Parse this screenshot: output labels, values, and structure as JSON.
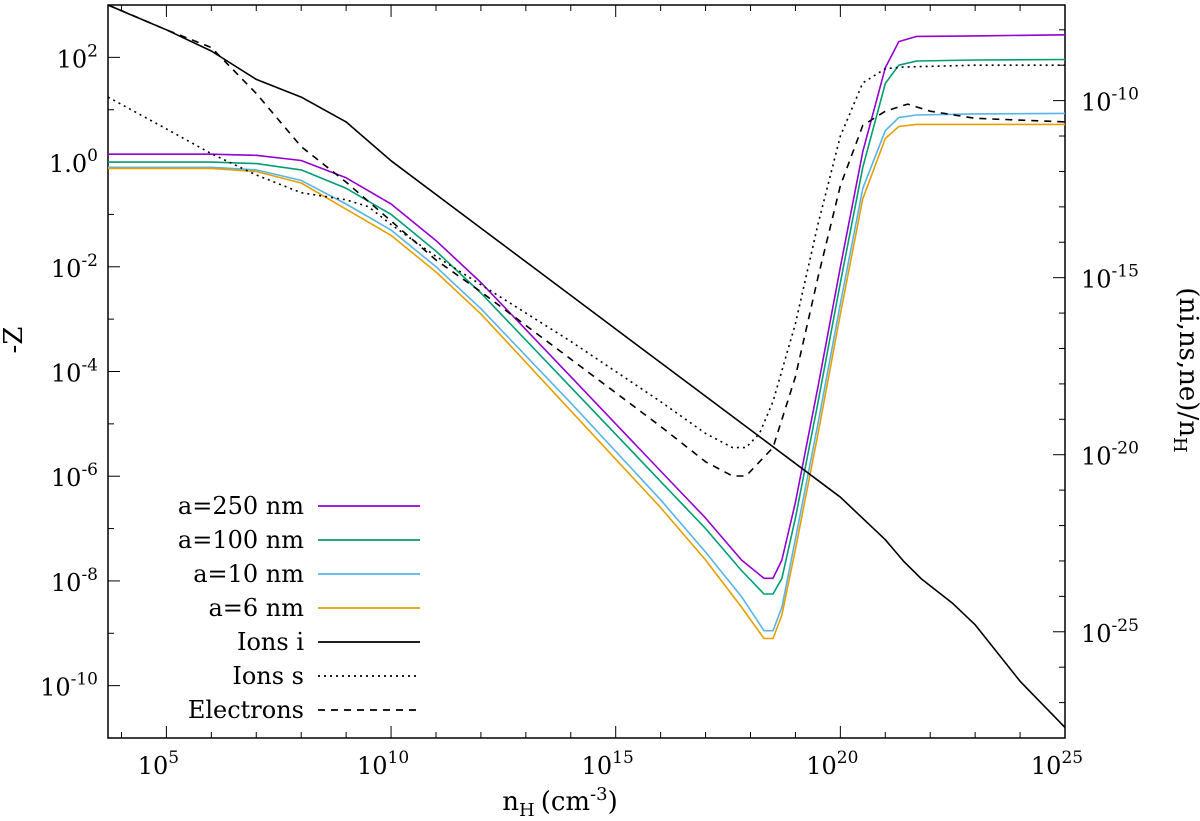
{
  "chart_data": {
    "type": "line",
    "xlabel": "n",
    "xlabel_sub": "H",
    "xlabel_unit": "(cm",
    "xlabel_unit_sup": "-3",
    "xlabel_unit_close": ")",
    "ylabel_left": "-Z",
    "ylabel_right": "(ni,ns,ne)/n",
    "ylabel_right_sub": "H",
    "x_scale": "log",
    "y_left_scale": "log",
    "y_right_scale": "log",
    "xlim_exp": [
      3.7,
      25
    ],
    "ylim_left_exp": [
      -11,
      3
    ],
    "ylim_right_exp": [
      -28,
      -7.3
    ],
    "x_ticks": [
      {
        "base": "10",
        "exp": "5"
      },
      {
        "base": "10",
        "exp": "10"
      },
      {
        "base": "10",
        "exp": "15"
      },
      {
        "base": "10",
        "exp": "20"
      },
      {
        "base": "10",
        "exp": "25"
      }
    ],
    "y_left_ticks": [
      {
        "base": "10",
        "exp": "2"
      },
      {
        "base": "1.0",
        "exp": "0"
      },
      {
        "base": "10",
        "exp": "-2"
      },
      {
        "base": "10",
        "exp": "-4"
      },
      {
        "base": "10",
        "exp": "-6"
      },
      {
        "base": "10",
        "exp": "-8"
      },
      {
        "base": "10",
        "exp": "-10"
      }
    ],
    "y_right_ticks": [
      {
        "base": "10",
        "exp": "-10"
      },
      {
        "base": "10",
        "exp": "-15"
      },
      {
        "base": "10",
        "exp": "-20"
      },
      {
        "base": "10",
        "exp": "-25"
      }
    ],
    "legend_position": "bottom-left",
    "series": [
      {
        "name": "a=250 nm",
        "axis": "left",
        "color": "#9400d3",
        "dash": "solid",
        "points": [
          [
            3.7,
            0.15
          ],
          [
            5,
            0.15
          ],
          [
            6,
            0.15
          ],
          [
            7,
            0.13
          ],
          [
            8,
            0.03
          ],
          [
            9,
            -0.3
          ],
          [
            10,
            -0.8
          ],
          [
            11,
            -1.5
          ],
          [
            12,
            -2.3
          ],
          [
            14,
            -4.1
          ],
          [
            16,
            -5.9
          ],
          [
            17,
            -6.8
          ],
          [
            17.8,
            -7.6
          ],
          [
            18.3,
            -7.95
          ],
          [
            18.5,
            -7.95
          ],
          [
            18.7,
            -7.6
          ],
          [
            19,
            -6.5
          ],
          [
            19.5,
            -4.3
          ],
          [
            20,
            -2
          ],
          [
            20.5,
            0.2
          ],
          [
            21,
            1.8
          ],
          [
            21.3,
            2.3
          ],
          [
            21.7,
            2.4
          ],
          [
            23,
            2.41
          ],
          [
            25,
            2.43
          ]
        ]
      },
      {
        "name": "a=100 nm",
        "axis": "left",
        "color": "#009e73",
        "dash": "solid",
        "points": [
          [
            3.7,
            0.0
          ],
          [
            5,
            0.0
          ],
          [
            6,
            0.0
          ],
          [
            7,
            -0.03
          ],
          [
            8,
            -0.15
          ],
          [
            9,
            -0.5
          ],
          [
            10,
            -1.0
          ],
          [
            11,
            -1.7
          ],
          [
            12,
            -2.5
          ],
          [
            14,
            -4.3
          ],
          [
            16,
            -6.1
          ],
          [
            17,
            -7.0
          ],
          [
            17.8,
            -7.8
          ],
          [
            18.3,
            -8.25
          ],
          [
            18.5,
            -8.25
          ],
          [
            18.7,
            -7.95
          ],
          [
            19,
            -6.8
          ],
          [
            19.5,
            -4.6
          ],
          [
            20,
            -2.3
          ],
          [
            20.5,
            -0.1
          ],
          [
            21,
            1.5
          ],
          [
            21.3,
            1.85
          ],
          [
            21.7,
            1.93
          ],
          [
            23,
            1.95
          ],
          [
            25,
            1.96
          ]
        ]
      },
      {
        "name": "a=10 nm",
        "axis": "left",
        "color": "#56b4e9",
        "dash": "solid",
        "points": [
          [
            3.7,
            -0.1
          ],
          [
            5,
            -0.1
          ],
          [
            6,
            -0.1
          ],
          [
            7,
            -0.15
          ],
          [
            8,
            -0.35
          ],
          [
            9,
            -0.8
          ],
          [
            10,
            -1.3
          ],
          [
            11,
            -2.0
          ],
          [
            12,
            -2.8
          ],
          [
            14,
            -4.6
          ],
          [
            16,
            -6.45
          ],
          [
            17,
            -7.45
          ],
          [
            17.8,
            -8.3
          ],
          [
            18.3,
            -8.95
          ],
          [
            18.5,
            -8.95
          ],
          [
            18.7,
            -8.5
          ],
          [
            19,
            -7.2
          ],
          [
            19.5,
            -5
          ],
          [
            20,
            -2.7
          ],
          [
            20.5,
            -0.5
          ],
          [
            21,
            0.6
          ],
          [
            21.3,
            0.85
          ],
          [
            21.7,
            0.9
          ],
          [
            23,
            0.92
          ],
          [
            25,
            0.93
          ]
        ]
      },
      {
        "name": "a=6 nm",
        "axis": "left",
        "color": "#e69f00",
        "dash": "solid",
        "points": [
          [
            3.7,
            -0.12
          ],
          [
            5,
            -0.12
          ],
          [
            6,
            -0.12
          ],
          [
            7,
            -0.18
          ],
          [
            8,
            -0.4
          ],
          [
            9,
            -0.9
          ],
          [
            10,
            -1.4
          ],
          [
            11,
            -2.1
          ],
          [
            12,
            -2.9
          ],
          [
            14,
            -4.75
          ],
          [
            16,
            -6.6
          ],
          [
            17,
            -7.6
          ],
          [
            17.8,
            -8.5
          ],
          [
            18.3,
            -9.1
          ],
          [
            18.5,
            -9.1
          ],
          [
            18.7,
            -8.65
          ],
          [
            19,
            -7.4
          ],
          [
            19.5,
            -5.2
          ],
          [
            20,
            -2.9
          ],
          [
            20.5,
            -0.7
          ],
          [
            21,
            0.45
          ],
          [
            21.3,
            0.68
          ],
          [
            21.7,
            0.72
          ],
          [
            23,
            0.72
          ],
          [
            25,
            0.72
          ]
        ]
      },
      {
        "name": "Ions i",
        "axis": "right",
        "color": "#000000",
        "dash": "solid",
        "points": [
          [
            3.7,
            -7.3
          ],
          [
            5,
            -8.0
          ],
          [
            6,
            -8.6
          ],
          [
            7,
            -9.4
          ],
          [
            8,
            -9.9
          ],
          [
            9,
            -10.6
          ],
          [
            10,
            -11.7
          ],
          [
            12,
            -13.6
          ],
          [
            14,
            -15.5
          ],
          [
            16,
            -17.4
          ],
          [
            18,
            -19.3
          ],
          [
            20,
            -21.2
          ],
          [
            21,
            -22.4
          ],
          [
            21.4,
            -23.0
          ],
          [
            21.8,
            -23.5
          ],
          [
            22.5,
            -24.2
          ],
          [
            23,
            -24.8
          ],
          [
            24,
            -26.4
          ],
          [
            25,
            -27.7
          ]
        ]
      },
      {
        "name": "Ions s",
        "axis": "right",
        "color": "#000000",
        "dash": "2,4",
        "points": [
          [
            3.7,
            -9.9
          ],
          [
            5,
            -10.8
          ],
          [
            6,
            -11.5
          ],
          [
            7,
            -12.1
          ],
          [
            8,
            -12.6
          ],
          [
            9,
            -12.8
          ],
          [
            9.5,
            -13.0
          ],
          [
            10,
            -13.5
          ],
          [
            11,
            -14.4
          ],
          [
            12,
            -15.2
          ],
          [
            14,
            -16.8
          ],
          [
            16,
            -18.5
          ],
          [
            17,
            -19.4
          ],
          [
            17.6,
            -19.8
          ],
          [
            17.9,
            -19.8
          ],
          [
            18.2,
            -19.4
          ],
          [
            18.5,
            -18.5
          ],
          [
            19,
            -16.3
          ],
          [
            19.5,
            -13.5
          ],
          [
            20,
            -11.0
          ],
          [
            20.5,
            -9.5
          ],
          [
            21,
            -9.1
          ],
          [
            21.4,
            -9.05
          ],
          [
            23,
            -9.0
          ],
          [
            25,
            -9.0
          ]
        ]
      },
      {
        "name": "Electrons",
        "axis": "right",
        "color": "#000000",
        "dash": "7,6",
        "points": [
          [
            3.7,
            -7.3
          ],
          [
            5,
            -8.0
          ],
          [
            6,
            -8.5
          ],
          [
            7,
            -9.8
          ],
          [
            8,
            -11.3
          ],
          [
            9,
            -12.3
          ],
          [
            10,
            -13.4
          ],
          [
            11,
            -14.5
          ],
          [
            12,
            -15.4
          ],
          [
            14,
            -17.3
          ],
          [
            16,
            -19.2
          ],
          [
            17,
            -20.2
          ],
          [
            17.6,
            -20.6
          ],
          [
            17.9,
            -20.6
          ],
          [
            18.2,
            -20.2
          ],
          [
            18.5,
            -19.8
          ],
          [
            19,
            -17.8
          ],
          [
            19.5,
            -15.0
          ],
          [
            20,
            -12.4
          ],
          [
            20.5,
            -10.7
          ],
          [
            21,
            -10.3
          ],
          [
            21.5,
            -10.1
          ],
          [
            22,
            -10.3
          ],
          [
            23,
            -10.5
          ],
          [
            25,
            -10.6
          ]
        ]
      }
    ]
  }
}
